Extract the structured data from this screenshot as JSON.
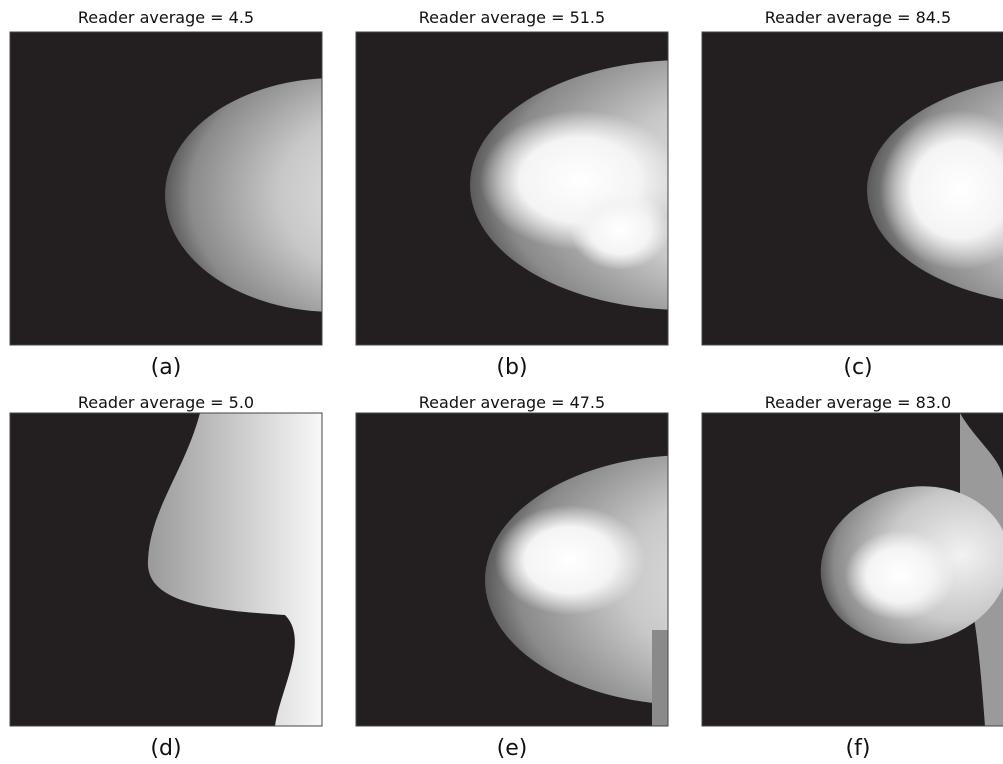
{
  "panels": [
    {
      "title": "Reader average = 4.5",
      "label": "(a)"
    },
    {
      "title": "Reader average = 51.5",
      "label": "(b)"
    },
    {
      "title": "Reader average = 84.5",
      "label": "(c)"
    },
    {
      "title": "Reader average = 5.0",
      "label": "(d)"
    },
    {
      "title": "Reader average = 47.5",
      "label": "(e)"
    },
    {
      "title": "Reader average = 83.0",
      "label": "(f)"
    }
  ]
}
